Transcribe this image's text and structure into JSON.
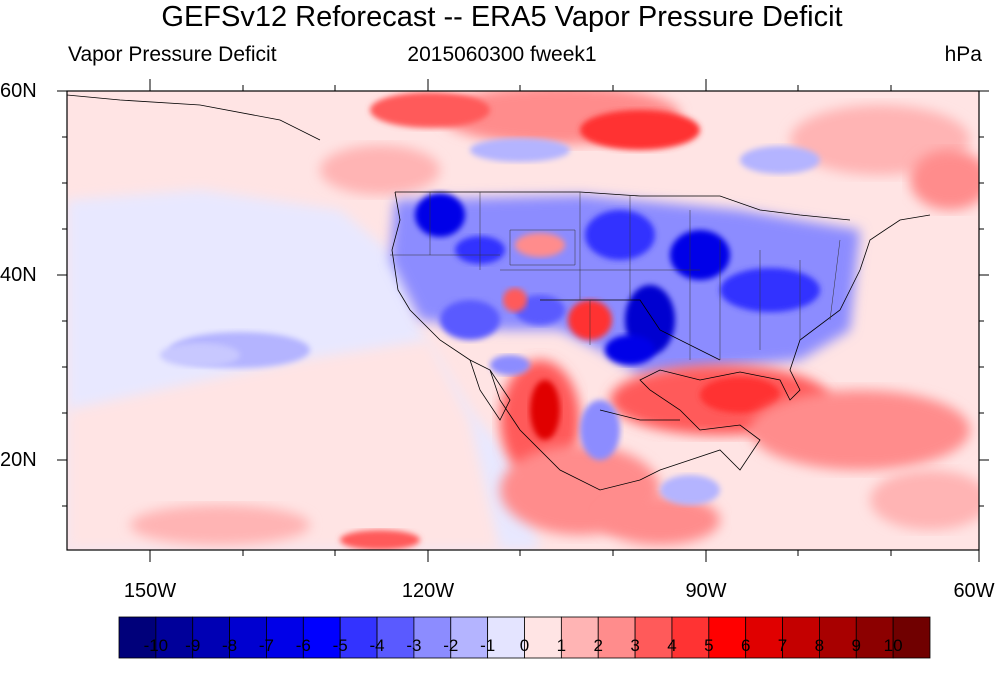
{
  "title": "GEFSv12 Reforecast -- ERA5 Vapor Pressure Deficit",
  "subtitle_left": "Vapor Pressure Deficit",
  "subtitle_center": "2015060300 fweek1",
  "subtitle_right": "hPa",
  "lat_labels": [
    "60N",
    "40N",
    "20N"
  ],
  "lon_labels": [
    "150W",
    "120W",
    "90W",
    "60W"
  ],
  "colorbar": {
    "labels": [
      "-10",
      "-9",
      "-8",
      "-7",
      "-6",
      "-5",
      "-4",
      "-3",
      "-2",
      "-1",
      "0",
      "1",
      "2",
      "3",
      "4",
      "5",
      "6",
      "7",
      "8",
      "9",
      "10"
    ],
    "colors": [
      "#00007a",
      "#00009a",
      "#0000b4",
      "#0000d0",
      "#0000e8",
      "#0000ff",
      "#3333ff",
      "#5a5aff",
      "#8c8cff",
      "#b4b4ff",
      "#e4e4ff",
      "#ffe4e4",
      "#ffb4b4",
      "#ff8c8c",
      "#ff5a5a",
      "#ff3333",
      "#ff0000",
      "#e00000",
      "#c40000",
      "#a80000",
      "#8c0000",
      "#700000"
    ]
  }
}
